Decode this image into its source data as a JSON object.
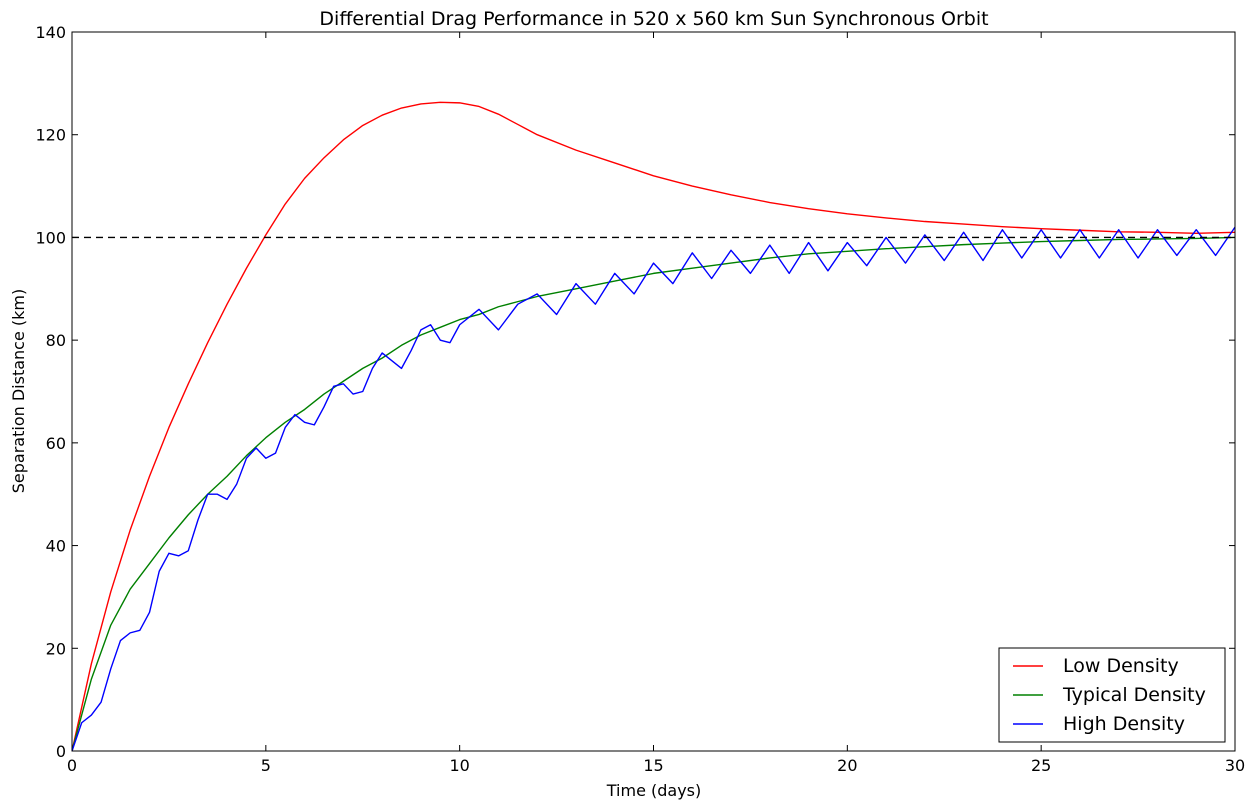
{
  "chart_data": {
    "type": "line",
    "title": "Differential Drag Performance in 520 x 560 km Sun Synchronous Orbit",
    "xlabel": "Time (days)",
    "ylabel": "Separation Distance (km)",
    "xlim": [
      0,
      30
    ],
    "ylim": [
      0,
      140
    ],
    "x_ticks": [
      0,
      5,
      10,
      15,
      20,
      25,
      30
    ],
    "y_ticks": [
      0,
      20,
      40,
      60,
      80,
      100,
      120,
      140
    ],
    "x_tick_labels": [
      "0",
      "5",
      "10",
      "15",
      "20",
      "25",
      "30"
    ],
    "y_tick_labels": [
      "0",
      "20",
      "40",
      "60",
      "80",
      "100",
      "120",
      "140"
    ],
    "grid": false,
    "legend_position": "bottom-right",
    "reference_line": {
      "y": 100,
      "style": "dashed",
      "color": "#000000"
    },
    "series": [
      {
        "name": "Low Density",
        "color": "#ff0000",
        "x": [
          0,
          0.5,
          1,
          1.5,
          2,
          2.5,
          3,
          3.5,
          4,
          4.5,
          5,
          5.5,
          6,
          6.5,
          7,
          7.5,
          8,
          8.5,
          9,
          9.5,
          10,
          10.5,
          11,
          11.5,
          12,
          13,
          14,
          15,
          16,
          17,
          18,
          19,
          20,
          21,
          22,
          23,
          24,
          25,
          26,
          27,
          28,
          29,
          30
        ],
        "y": [
          0,
          17,
          31,
          43,
          53.5,
          63,
          71.5,
          79.5,
          87,
          94,
          100.5,
          106.5,
          111.5,
          115.5,
          119,
          121.8,
          123.8,
          125.2,
          126,
          126.3,
          126.2,
          125.5,
          124,
          122,
          120,
          117,
          114.5,
          112,
          110,
          108.3,
          106.8,
          105.6,
          104.6,
          103.8,
          103.1,
          102.6,
          102.1,
          101.7,
          101.4,
          101.1,
          101,
          100.8,
          101
        ]
      },
      {
        "name": "Typical Density",
        "color": "#008000",
        "x": [
          0,
          0.5,
          1,
          1.5,
          2,
          2.5,
          3,
          3.5,
          4,
          4.5,
          5,
          5.5,
          6,
          6.5,
          7,
          7.5,
          8,
          8.5,
          9,
          9.5,
          10,
          10.5,
          11,
          11.5,
          12,
          13,
          14,
          15,
          16,
          17,
          18,
          19,
          20,
          21,
          22,
          23,
          24,
          25,
          26,
          27,
          28,
          29,
          30
        ],
        "y": [
          0,
          14,
          24.5,
          31.5,
          36.5,
          41.5,
          46,
          50,
          53.5,
          57.5,
          61,
          64,
          66.5,
          69.5,
          72,
          74.5,
          76.5,
          79,
          81,
          82.5,
          84,
          85,
          86.5,
          87.5,
          88.5,
          90,
          91.5,
          93,
          94,
          95,
          96,
          96.8,
          97.3,
          97.8,
          98.2,
          98.6,
          98.9,
          99.2,
          99.4,
          99.6,
          99.7,
          99.8,
          100
        ]
      },
      {
        "name": "High Density",
        "color": "#0000ff",
        "x": [
          0,
          0.25,
          0.5,
          0.75,
          1,
          1.25,
          1.5,
          1.75,
          2,
          2.25,
          2.5,
          2.75,
          3,
          3.25,
          3.5,
          3.75,
          4,
          4.25,
          4.5,
          4.75,
          5,
          5.25,
          5.5,
          5.75,
          6,
          6.25,
          6.5,
          6.75,
          7,
          7.25,
          7.5,
          7.75,
          8,
          8.25,
          8.5,
          8.75,
          9,
          9.25,
          9.5,
          9.75,
          10,
          10.5,
          11,
          11.5,
          12,
          12.5,
          13,
          13.5,
          14,
          14.5,
          15,
          15.5,
          16,
          16.5,
          17,
          17.5,
          18,
          18.5,
          19,
          19.5,
          20,
          20.5,
          21,
          21.5,
          22,
          22.5,
          23,
          23.5,
          24,
          24.5,
          25,
          25.5,
          26,
          26.5,
          27,
          27.5,
          28,
          28.5,
          29,
          29.5,
          30
        ],
        "y": [
          0,
          5.5,
          7,
          9.5,
          16,
          21.5,
          23,
          23.5,
          27,
          35,
          38.5,
          38,
          39,
          45,
          50,
          50,
          49,
          52,
          57,
          59,
          57,
          58,
          63,
          65.5,
          64,
          63.5,
          67,
          71,
          71.5,
          69.5,
          70,
          74.5,
          77.5,
          76,
          74.5,
          78,
          82,
          83,
          80,
          79.5,
          83,
          86,
          82,
          87,
          89,
          85,
          91,
          87,
          93,
          89,
          95,
          91,
          97,
          92,
          97.5,
          93,
          98.5,
          93,
          99,
          93.5,
          99,
          94.5,
          100,
          95,
          100.5,
          95.5,
          101,
          95.5,
          101.5,
          96,
          101.5,
          96,
          101.5,
          96,
          101.5,
          96,
          101.5,
          96.5,
          101.5,
          96.5,
          102
        ]
      }
    ]
  }
}
